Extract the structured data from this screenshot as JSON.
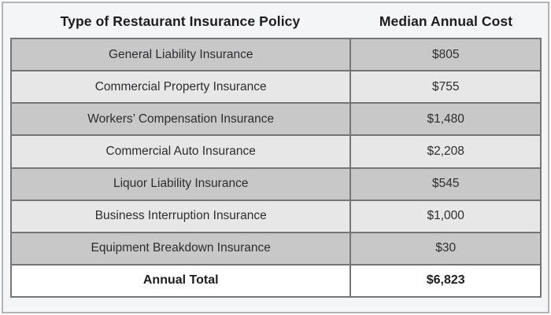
{
  "table": {
    "headers": {
      "policy": "Type of Restaurant Insurance Policy",
      "cost": "Median Annual Cost"
    },
    "rows": [
      {
        "policy": "General Liability Insurance",
        "cost": "$805"
      },
      {
        "policy": "Commercial Property Insurance",
        "cost": "$755"
      },
      {
        "policy": "Workers’ Compensation Insurance",
        "cost": "$1,480"
      },
      {
        "policy": "Commercial Auto Insurance",
        "cost": "$2,208"
      },
      {
        "policy": "Liquor Liability Insurance",
        "cost": "$545"
      },
      {
        "policy": "Business Interruption Insurance",
        "cost": "$1,000"
      },
      {
        "policy": "Equipment Breakdown Insurance",
        "cost": "$30"
      }
    ],
    "total": {
      "label": "Annual Total",
      "cost": "$6,823"
    }
  },
  "colors": {
    "row_dark": "#c8c8c8",
    "row_light": "#e7e7e7",
    "total_row_bg": "#ffffff",
    "grid_border": "#757575",
    "frame_border": "#b3b3b3",
    "background": "#f4f5f6",
    "text": "#2d2d2f",
    "bold_text": "#1d1d1f"
  },
  "chart_data": {
    "type": "table",
    "title": "",
    "columns": [
      "Type of Restaurant Insurance Policy",
      "Median Annual Cost"
    ],
    "categories": [
      "General Liability Insurance",
      "Commercial Property Insurance",
      "Workers’ Compensation Insurance",
      "Commercial Auto Insurance",
      "Liquor Liability Insurance",
      "Business Interruption Insurance",
      "Equipment Breakdown Insurance"
    ],
    "values": [
      805,
      755,
      1480,
      2208,
      545,
      1000,
      30
    ],
    "total": {
      "label": "Annual Total",
      "value": 6823
    },
    "layout": {
      "striped": true,
      "grid": true,
      "legend": "none"
    }
  }
}
